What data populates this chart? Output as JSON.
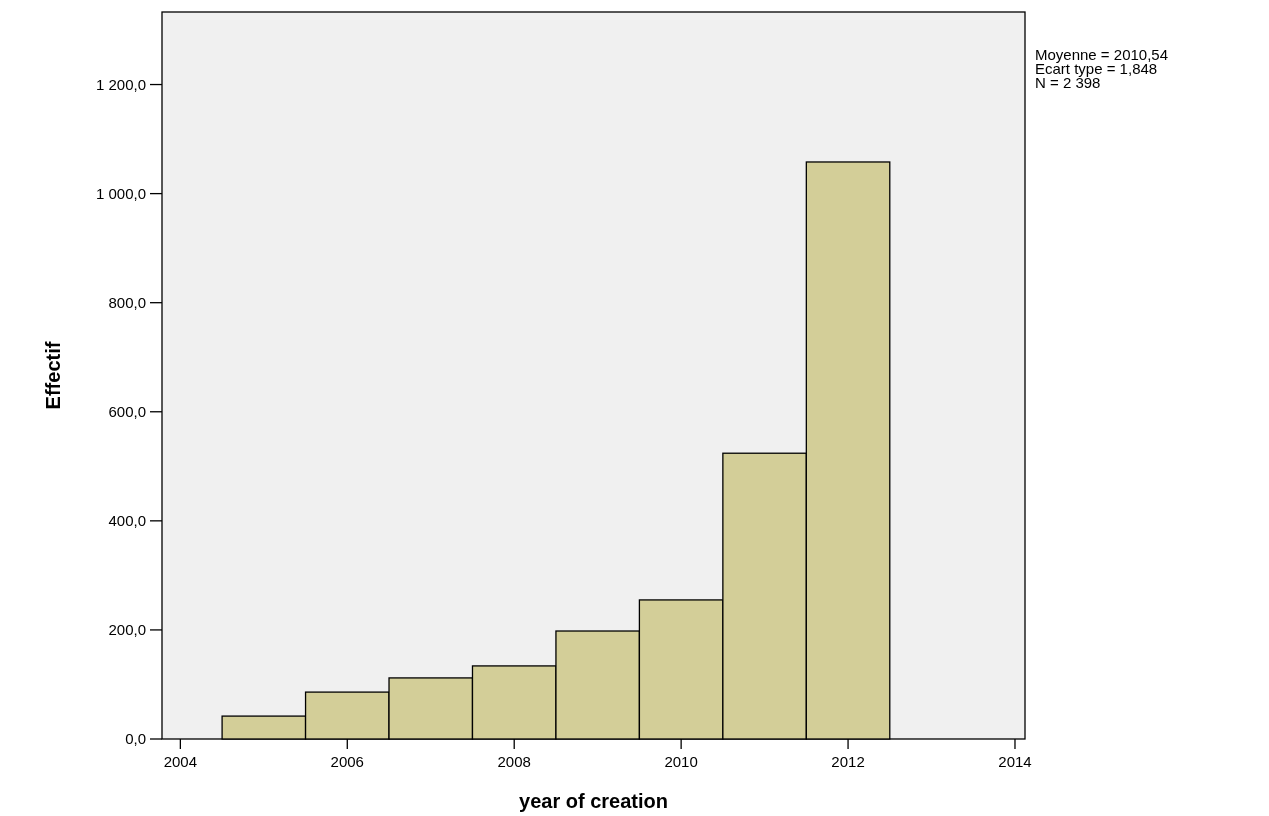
{
  "chart_data": {
    "type": "histogram",
    "xlabel": "year of creation",
    "ylabel": "Effectif",
    "bins": [
      2004.5,
      2005.5,
      2006.5,
      2007.5,
      2008.5,
      2009.5,
      2010.5,
      2011.5,
      2012.5
    ],
    "values": [
      42,
      86,
      112,
      134,
      198,
      255,
      524,
      1058
    ],
    "color": "#d3ce98",
    "xlim": [
      2003.78,
      2014.12
    ],
    "xticks": [
      2004,
      2006,
      2008,
      2010,
      2012,
      2014
    ],
    "ylim": [
      0,
      1333
    ],
    "yticks": [
      {
        "value": 0,
        "label": "0,0"
      },
      {
        "value": 200,
        "label": "200,0"
      },
      {
        "value": 400,
        "label": "400,0"
      },
      {
        "value": 600,
        "label": "600,0"
      },
      {
        "value": 800,
        "label": "800,0"
      },
      {
        "value": 1000,
        "label": "1 000,0"
      },
      {
        "value": 1200,
        "label": "1 200,0"
      }
    ],
    "annotations": [
      "Moyenne = 2010,54",
      "Ecart type = 1,848",
      "N = 2 398"
    ],
    "grid": false
  }
}
